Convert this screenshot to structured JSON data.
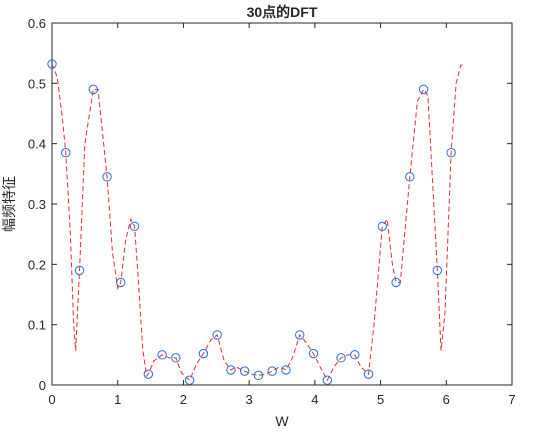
{
  "chart_data": {
    "type": "scatter",
    "title": "30点的DFT",
    "xlabel": "W",
    "ylabel": "幅频特征",
    "xlim": [
      0,
      7
    ],
    "ylim": [
      0,
      0.6
    ],
    "xticks": [
      "0",
      "1",
      "2",
      "3",
      "4",
      "5",
      "6",
      "7"
    ],
    "yticks": [
      "0",
      "0.1",
      "0.2",
      "0.3",
      "0.4",
      "0.5",
      "0.6"
    ],
    "grid": false,
    "series": [
      {
        "style": "markers",
        "marker": "circle",
        "color": "#1f6fd6",
        "x": [
          0,
          0.2094,
          0.4189,
          0.6283,
          0.8378,
          1.0472,
          1.2566,
          1.4661,
          1.6755,
          1.885,
          2.0944,
          2.3038,
          2.5133,
          2.7227,
          2.9322,
          3.1416,
          3.351,
          3.5605,
          3.7699,
          3.9794,
          4.1888,
          4.3982,
          4.6077,
          4.8171,
          5.0265,
          5.236,
          5.4454,
          5.6549,
          5.8643,
          6.0737
        ],
        "y": [
          0.532,
          0.385,
          0.19,
          0.49,
          0.345,
          0.17,
          0.263,
          0.018,
          0.05,
          0.045,
          0.008,
          0.052,
          0.083,
          0.025,
          0.023,
          0.016,
          0.023,
          0.025,
          0.083,
          0.052,
          0.008,
          0.045,
          0.05,
          0.018,
          0.263,
          0.17,
          0.345,
          0.49,
          0.19,
          0.385
        ]
      },
      {
        "style": "dashed-line",
        "color": "#e8282c",
        "x": [
          0,
          0.08,
          0.16,
          0.2094,
          0.28,
          0.33,
          0.36,
          0.4189,
          0.5,
          0.6283,
          0.7,
          0.8378,
          0.92,
          1.0,
          1.0472,
          1.12,
          1.2,
          1.2566,
          1.31,
          1.38,
          1.44,
          1.4661,
          1.55,
          1.6755,
          1.78,
          1.885,
          1.97,
          2.0944,
          2.2,
          2.3038,
          2.42,
          2.5133,
          2.62,
          2.7227,
          2.8,
          2.9322,
          3.03,
          3.1416,
          3.25,
          3.351,
          3.46,
          3.5605,
          3.66,
          3.7699,
          3.87,
          3.9794,
          4.08,
          4.1888,
          4.29,
          4.3982,
          4.5,
          4.6077,
          4.7,
          4.8171,
          4.9,
          5.0265,
          5.1,
          5.18,
          5.236,
          5.3,
          5.4454,
          5.56,
          5.6549,
          5.72,
          5.8643,
          5.92,
          5.98,
          6.0737,
          6.15,
          6.22,
          6.283
        ],
        "y": [
          0.532,
          0.51,
          0.44,
          0.385,
          0.25,
          0.1,
          0.057,
          0.19,
          0.4,
          0.49,
          0.49,
          0.345,
          0.22,
          0.16,
          0.17,
          0.24,
          0.275,
          0.263,
          0.18,
          0.06,
          0.015,
          0.018,
          0.04,
          0.05,
          0.045,
          0.045,
          0.02,
          0.008,
          0.035,
          0.052,
          0.075,
          0.083,
          0.04,
          0.025,
          0.03,
          0.023,
          0.018,
          0.016,
          0.018,
          0.023,
          0.03,
          0.025,
          0.045,
          0.083,
          0.07,
          0.052,
          0.03,
          0.008,
          0.03,
          0.045,
          0.05,
          0.05,
          0.03,
          0.018,
          0.1,
          0.263,
          0.275,
          0.2,
          0.17,
          0.17,
          0.345,
          0.47,
          0.49,
          0.48,
          0.19,
          0.057,
          0.12,
          0.385,
          0.5,
          0.53,
          0.532
        ]
      }
    ]
  }
}
